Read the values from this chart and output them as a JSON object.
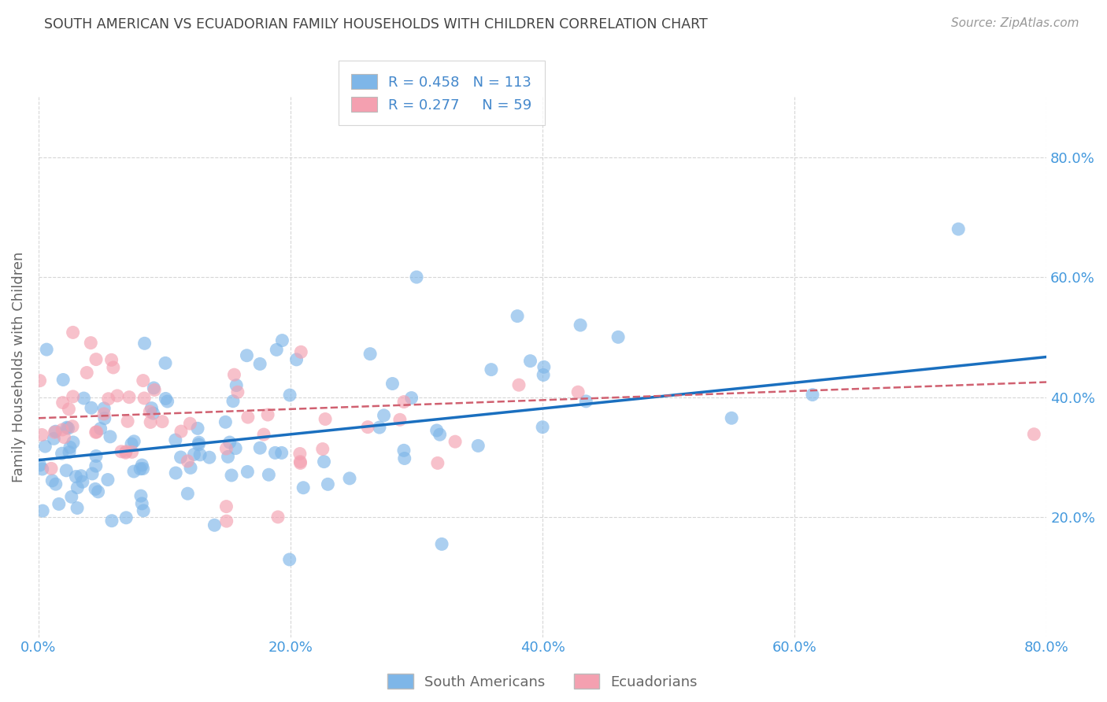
{
  "title": "SOUTH AMERICAN VS ECUADORIAN FAMILY HOUSEHOLDS WITH CHILDREN CORRELATION CHART",
  "source": "Source: ZipAtlas.com",
  "ylabel": "Family Households with Children",
  "xlim": [
    0.0,
    0.8
  ],
  "ylim": [
    0.0,
    0.9
  ],
  "xtick_values": [
    0.0,
    0.2,
    0.4,
    0.6,
    0.8
  ],
  "ytick_values": [
    0.2,
    0.4,
    0.6,
    0.8
  ],
  "blue_R": 0.458,
  "blue_N": 113,
  "pink_R": 0.277,
  "pink_N": 59,
  "blue_color": "#7EB6E8",
  "pink_color": "#F4A0B0",
  "blue_line_color": "#1A6FBF",
  "pink_line_color": "#D06070",
  "grid_color": "#CCCCCC",
  "background_color": "#FFFFFF",
  "title_color": "#444444",
  "source_color": "#999999",
  "tick_color": "#4499DD",
  "legend_text_color": "#4488CC",
  "blue_line_intercept": 0.295,
  "blue_line_slope": 0.215,
  "pink_line_intercept": 0.365,
  "pink_line_slope": 0.075
}
